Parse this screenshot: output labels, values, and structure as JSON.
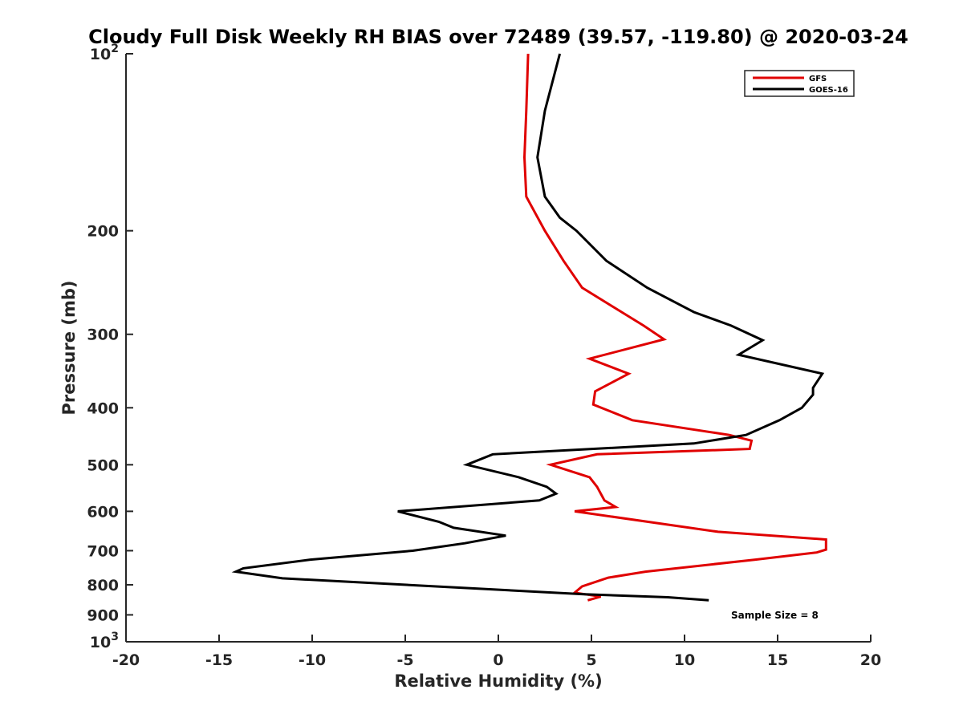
{
  "chart_data": {
    "type": "line",
    "title": "Cloudy Full Disk Weekly RH BIAS over 72489 (39.57, -119.80) @ 2020-03-24",
    "xlabel": "Relative Humidity (%)",
    "ylabel": "Pressure (mb)",
    "xlim": [
      -20,
      20
    ],
    "ylim": [
      1000,
      100
    ],
    "yscale": "log",
    "y_reversed": true,
    "x_ticks": [
      "-20",
      "-15",
      "-10",
      "-5",
      "0",
      "5",
      "10",
      "15",
      "20"
    ],
    "y_ticks": [
      {
        "value": 100,
        "base": "10",
        "exp": "2"
      },
      {
        "value": 200,
        "label": "200"
      },
      {
        "value": 300,
        "label": "300"
      },
      {
        "value": 400,
        "label": "400"
      },
      {
        "value": 500,
        "label": "500"
      },
      {
        "value": 600,
        "label": "600"
      },
      {
        "value": 700,
        "label": "700"
      },
      {
        "value": 800,
        "label": "800"
      },
      {
        "value": 900,
        "label": "900"
      },
      {
        "value": 1000,
        "base": "10",
        "exp": "3"
      }
    ],
    "grid": false,
    "legend_position": "top-right",
    "series": [
      {
        "name": "GFS",
        "color": "#e00000",
        "points": [
          [
            1.6,
            100
          ],
          [
            1.5,
            125
          ],
          [
            1.4,
            150
          ],
          [
            1.5,
            175
          ],
          [
            2.5,
            200
          ],
          [
            3.5,
            225
          ],
          [
            4.5,
            250
          ],
          [
            7.8,
            290
          ],
          [
            8.9,
            306
          ],
          [
            4.9,
            330
          ],
          [
            7.0,
            350
          ],
          [
            5.2,
            375
          ],
          [
            5.1,
            395
          ],
          [
            7.2,
            420
          ],
          [
            12.4,
            445
          ],
          [
            13.6,
            455
          ],
          [
            13.5,
            470
          ],
          [
            5.3,
            480
          ],
          [
            2.8,
            500
          ],
          [
            4.9,
            525
          ],
          [
            5.3,
            545
          ],
          [
            5.7,
            575
          ],
          [
            6.3,
            590
          ],
          [
            4.1,
            600
          ],
          [
            11.8,
            650
          ],
          [
            17.6,
            670
          ],
          [
            17.6,
            697
          ],
          [
            17.1,
            705
          ],
          [
            13.8,
            725
          ],
          [
            7.9,
            760
          ],
          [
            5.9,
            778
          ],
          [
            4.5,
            805
          ],
          [
            4.1,
            825
          ],
          [
            5.5,
            838
          ],
          [
            4.8,
            850
          ]
        ]
      },
      {
        "name": "GOES-16",
        "color": "#000000",
        "points": [
          [
            3.3,
            100
          ],
          [
            2.5,
            125
          ],
          [
            2.1,
            150
          ],
          [
            2.5,
            175
          ],
          [
            3.3,
            190
          ],
          [
            4.2,
            200
          ],
          [
            5.8,
            225
          ],
          [
            8.0,
            250
          ],
          [
            10.5,
            275
          ],
          [
            12.5,
            290
          ],
          [
            14.2,
            307
          ],
          [
            12.9,
            325
          ],
          [
            17.4,
            350
          ],
          [
            16.9,
            370
          ],
          [
            16.9,
            380
          ],
          [
            16.3,
            400
          ],
          [
            15.1,
            420
          ],
          [
            13.3,
            445
          ],
          [
            10.5,
            460
          ],
          [
            -0.3,
            480
          ],
          [
            -1.7,
            500
          ],
          [
            1.1,
            525
          ],
          [
            2.6,
            545
          ],
          [
            3.1,
            560
          ],
          [
            2.2,
            575
          ],
          [
            -5.4,
            600
          ],
          [
            -3.2,
            625
          ],
          [
            -2.4,
            640
          ],
          [
            0.4,
            660
          ],
          [
            -1.8,
            680
          ],
          [
            -4.6,
            700
          ],
          [
            -10.1,
            725
          ],
          [
            -13.7,
            750
          ],
          [
            -14.1,
            760
          ],
          [
            -11.6,
            780
          ],
          [
            4.6,
            830
          ],
          [
            9.1,
            840
          ],
          [
            11.3,
            850
          ]
        ]
      }
    ],
    "annotation": "Sample Size = 8"
  }
}
